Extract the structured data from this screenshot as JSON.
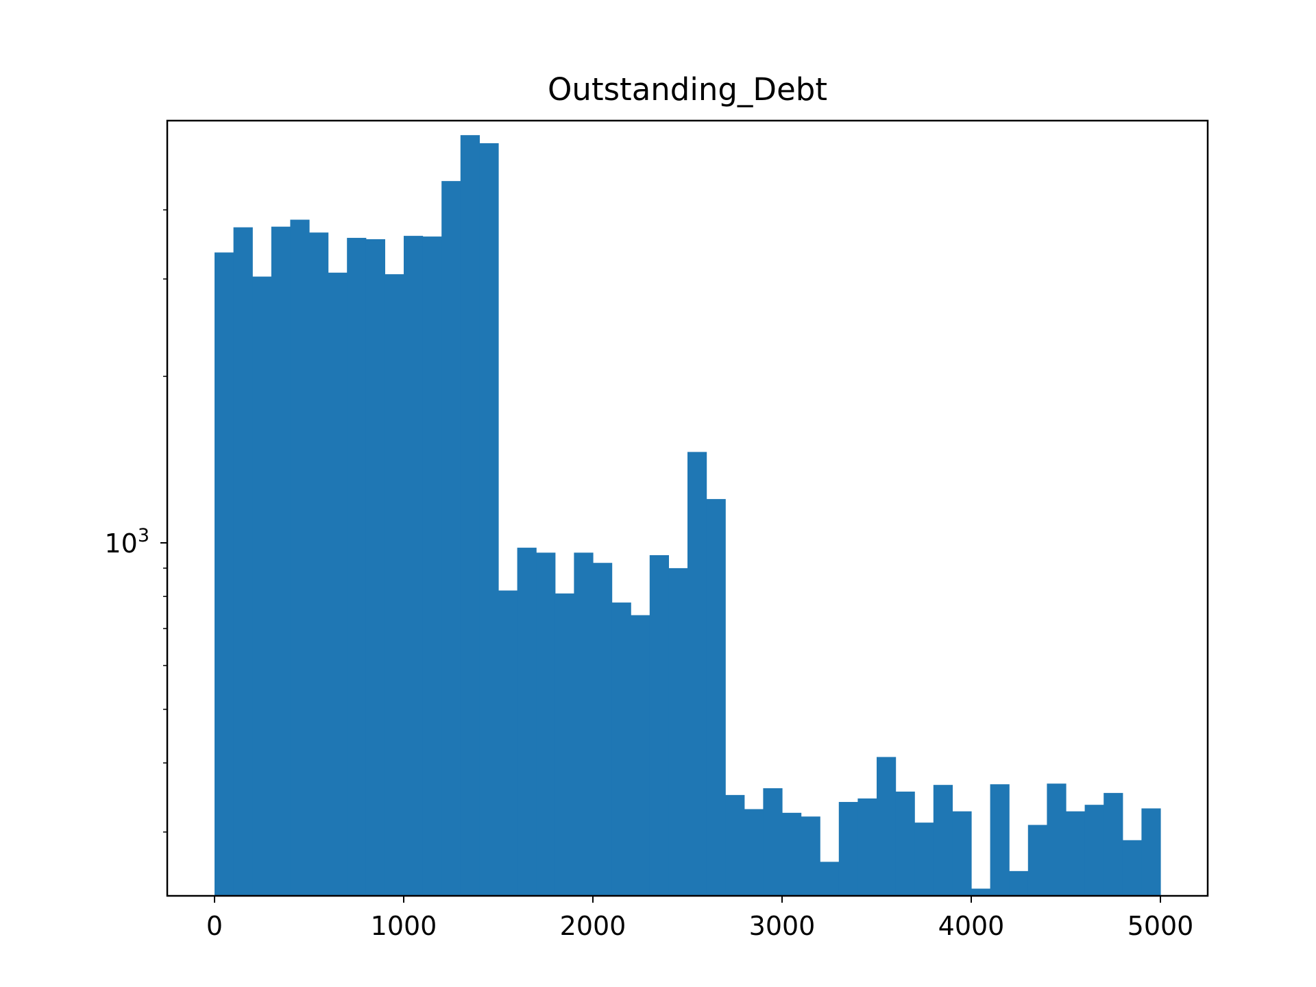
{
  "chart_data": {
    "type": "bar",
    "title": "Outstanding_Debt",
    "xlabel": "",
    "ylabel": "",
    "y_scale": "log",
    "grid": false,
    "legend": "none",
    "xlim": [
      -250,
      5250
    ],
    "ylim": [
      230,
      5800
    ],
    "x_ticks": [
      0,
      1000,
      2000,
      3000,
      4000,
      5000
    ],
    "x_tick_labels": [
      "0",
      "1000",
      "2000",
      "3000",
      "4000",
      "5000"
    ],
    "y_major_ticks": [
      {
        "value": 1000,
        "base": "10",
        "exp": "3"
      }
    ],
    "y_minor_ticks": [
      300,
      400,
      500,
      600,
      700,
      800,
      900,
      2000,
      3000,
      4000
    ],
    "bin_start": 0,
    "bin_width": 100,
    "values": [
      3350,
      3720,
      3030,
      3730,
      3840,
      3640,
      3080,
      3560,
      3540,
      3060,
      3590,
      3580,
      4510,
      5460,
      5280,
      820,
      980,
      960,
      810,
      960,
      920,
      780,
      740,
      950,
      900,
      1460,
      1200,
      350,
      330,
      360,
      325,
      320,
      265,
      340,
      345,
      410,
      355,
      312,
      365,
      327,
      237,
      366,
      255,
      309,
      367,
      327,
      336,
      353,
      290,
      331
    ],
    "color": "#1f77b4"
  }
}
